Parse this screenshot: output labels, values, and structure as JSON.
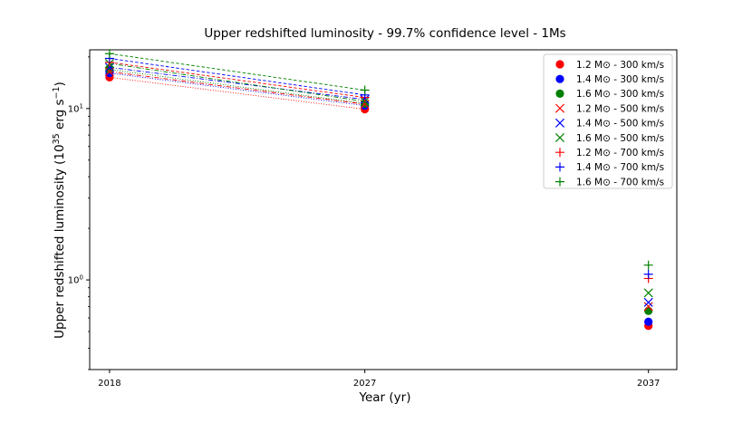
{
  "chart_data": {
    "type": "scatter",
    "title": "Upper redshifted luminosity - 99.7% confidence level - 1Ms",
    "xlabel": "Year (yr)",
    "ylabel_main": "Upper redshifted luminosity (10",
    "ylabel_exp1": "35",
    "ylabel_mid": " erg s",
    "ylabel_exp2": "−1",
    "ylabel_end": ")",
    "x_ticks": [
      {
        "value": 2018,
        "label": "2018"
      },
      {
        "value": 2027,
        "label": "2027"
      },
      {
        "value": 2037,
        "label": "2037"
      }
    ],
    "y_ticks": [
      {
        "value": 1,
        "label": "10",
        "exp": "0"
      },
      {
        "value": 10,
        "label": "10",
        "exp": "1"
      }
    ],
    "xlim": [
      2017.3,
      2038.0
    ],
    "ylim": [
      0.3,
      22.0
    ],
    "yscale": "log",
    "legend_position": "top-right",
    "series": [
      {
        "name": "1.2 M⊙ - 300 km/s",
        "color": "#ff0000",
        "marker": "circle",
        "line": "dotted",
        "x": [
          2018,
          2027,
          2037
        ],
        "y": [
          15.2,
          9.9,
          0.54
        ]
      },
      {
        "name": "1.4 M⊙ - 300 km/s",
        "color": "#0000ff",
        "marker": "circle",
        "line": "dotted",
        "x": [
          2018,
          2027,
          2037
        ],
        "y": [
          16.1,
          10.4,
          0.57
        ]
      },
      {
        "name": "1.6 M⊙ - 300 km/s",
        "color": "#008000",
        "marker": "circle",
        "line": "dotted",
        "x": [
          2018,
          2027,
          2037
        ],
        "y": [
          16.9,
          10.7,
          0.66
        ]
      },
      {
        "name": "1.2 M⊙ - 500 km/s",
        "color": "#ff0000",
        "marker": "x",
        "line": "dashdot",
        "x": [
          2018,
          2027,
          2037
        ],
        "y": [
          16.4,
          10.6,
          0.7
        ]
      },
      {
        "name": "1.4 M⊙ - 500 km/s",
        "color": "#0000ff",
        "marker": "x",
        "line": "dashdot",
        "x": [
          2018,
          2027,
          2037
        ],
        "y": [
          17.4,
          11.3,
          0.74
        ]
      },
      {
        "name": "1.6 M⊙ - 500 km/s",
        "color": "#008000",
        "marker": "x",
        "line": "dashdot",
        "x": [
          2018,
          2027,
          2037
        ],
        "y": [
          18.3,
          11.0,
          0.84
        ]
      },
      {
        "name": "1.2 M⊙ - 700 km/s",
        "color": "#ff0000",
        "marker": "plus",
        "line": "dashed",
        "x": [
          2018,
          2027,
          2037
        ],
        "y": [
          18.6,
          11.6,
          1.02
        ]
      },
      {
        "name": "1.4 M⊙ - 700 km/s",
        "color": "#0000ff",
        "marker": "plus",
        "line": "dashed",
        "x": [
          2018,
          2027,
          2037
        ],
        "y": [
          19.6,
          12.0,
          1.08
        ]
      },
      {
        "name": "1.6 M⊙ - 700 km/s",
        "color": "#008000",
        "marker": "plus",
        "line": "dashed",
        "x": [
          2018,
          2027,
          2037
        ],
        "y": [
          20.9,
          12.8,
          1.22
        ]
      }
    ]
  }
}
